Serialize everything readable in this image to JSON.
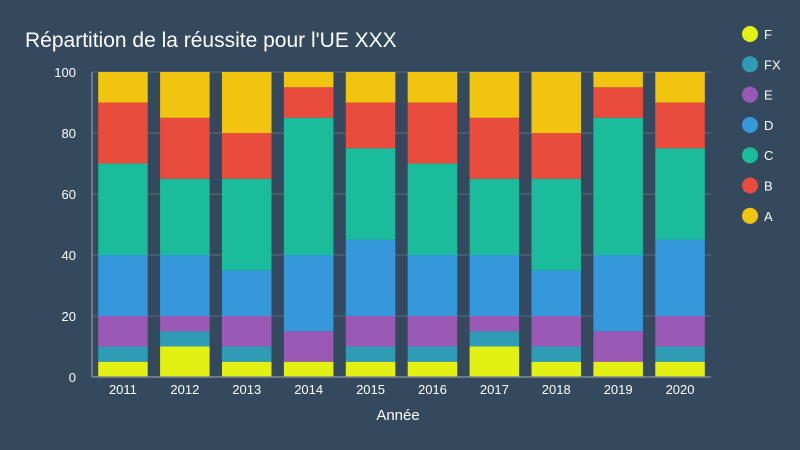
{
  "chart_data": {
    "type": "bar",
    "stacked": true,
    "title": "Répartition de la réussite pour l'UE XXX",
    "xlabel": "Année",
    "ylabel": "",
    "ylim": [
      0,
      100
    ],
    "yticks": [
      0,
      20,
      40,
      60,
      80,
      100
    ],
    "grid": true,
    "legend_position": "right",
    "categories": [
      "2011",
      "2012",
      "2013",
      "2014",
      "2015",
      "2016",
      "2017",
      "2018",
      "2019",
      "2020"
    ],
    "series": [
      {
        "name": "F",
        "color": "#e2f013",
        "values": [
          5,
          10,
          5,
          5,
          5,
          5,
          10,
          5,
          5,
          5
        ]
      },
      {
        "name": "FX",
        "color": "#2f9bb5",
        "values": [
          5,
          5,
          5,
          0,
          5,
          5,
          5,
          5,
          0,
          5
        ]
      },
      {
        "name": "E",
        "color": "#9b59b6",
        "values": [
          10,
          5,
          10,
          10,
          10,
          10,
          5,
          10,
          10,
          10
        ]
      },
      {
        "name": "D",
        "color": "#3498db",
        "values": [
          20,
          20,
          15,
          25,
          25,
          20,
          20,
          15,
          25,
          25
        ]
      },
      {
        "name": "C",
        "color": "#1abc9c",
        "values": [
          30,
          25,
          30,
          45,
          30,
          30,
          25,
          30,
          45,
          30
        ]
      },
      {
        "name": "B",
        "color": "#e74c3c",
        "values": [
          20,
          20,
          15,
          10,
          15,
          20,
          20,
          15,
          10,
          15
        ]
      },
      {
        "name": "A",
        "color": "#f1c40f",
        "values": [
          10,
          15,
          20,
          5,
          10,
          10,
          15,
          20,
          5,
          10
        ]
      }
    ]
  }
}
